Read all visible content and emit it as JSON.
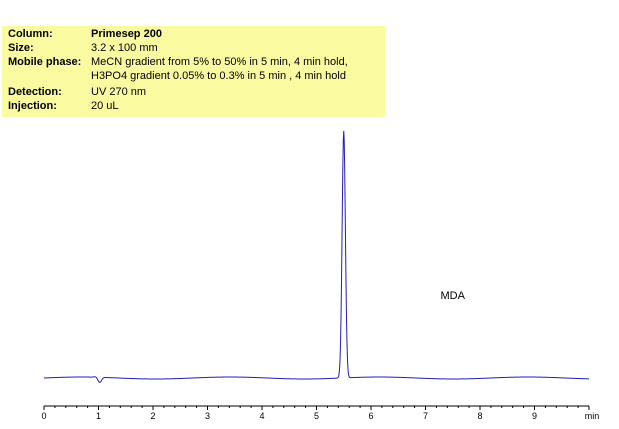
{
  "info": {
    "column_label": "Column:",
    "column_value": "Primesep 200",
    "size_label": "Size:",
    "size_value": "3.2 x 100 mm",
    "mobile_phase_label": "Mobile phase:",
    "mobile_phase_line1": "MeCN gradient from 5% to 50% in 5 min, 4 min hold,",
    "mobile_phase_line2": "H3PO4 gradient 0.05% to 0.3% in 5 min ,  4 min hold",
    "detection_label": "Detection:",
    "detection_value": "UV 270 nm",
    "injection_label": "Injection:",
    "injection_value": "20 uL",
    "box_color": "#fafaa0"
  },
  "chart_data": {
    "type": "line",
    "title": "",
    "xlabel": "min",
    "ylabel": "",
    "xlim": [
      0,
      10
    ],
    "x_ticks": [
      "0",
      "1",
      "2",
      "3",
      "4",
      "5",
      "6",
      "7",
      "8",
      "9"
    ],
    "grid": false,
    "series": [
      {
        "color": "#1f1fb4",
        "baseline": 0.0,
        "peaks": [
          {
            "name": "MDA",
            "retention_time": 5.5,
            "height": 1.0,
            "width_sigma": 0.03
          }
        ],
        "injection_disturbance": {
          "time": 1.0
        }
      }
    ],
    "annotations": [
      {
        "text": "MDA",
        "x": 7.5,
        "y": 0.32
      }
    ]
  }
}
